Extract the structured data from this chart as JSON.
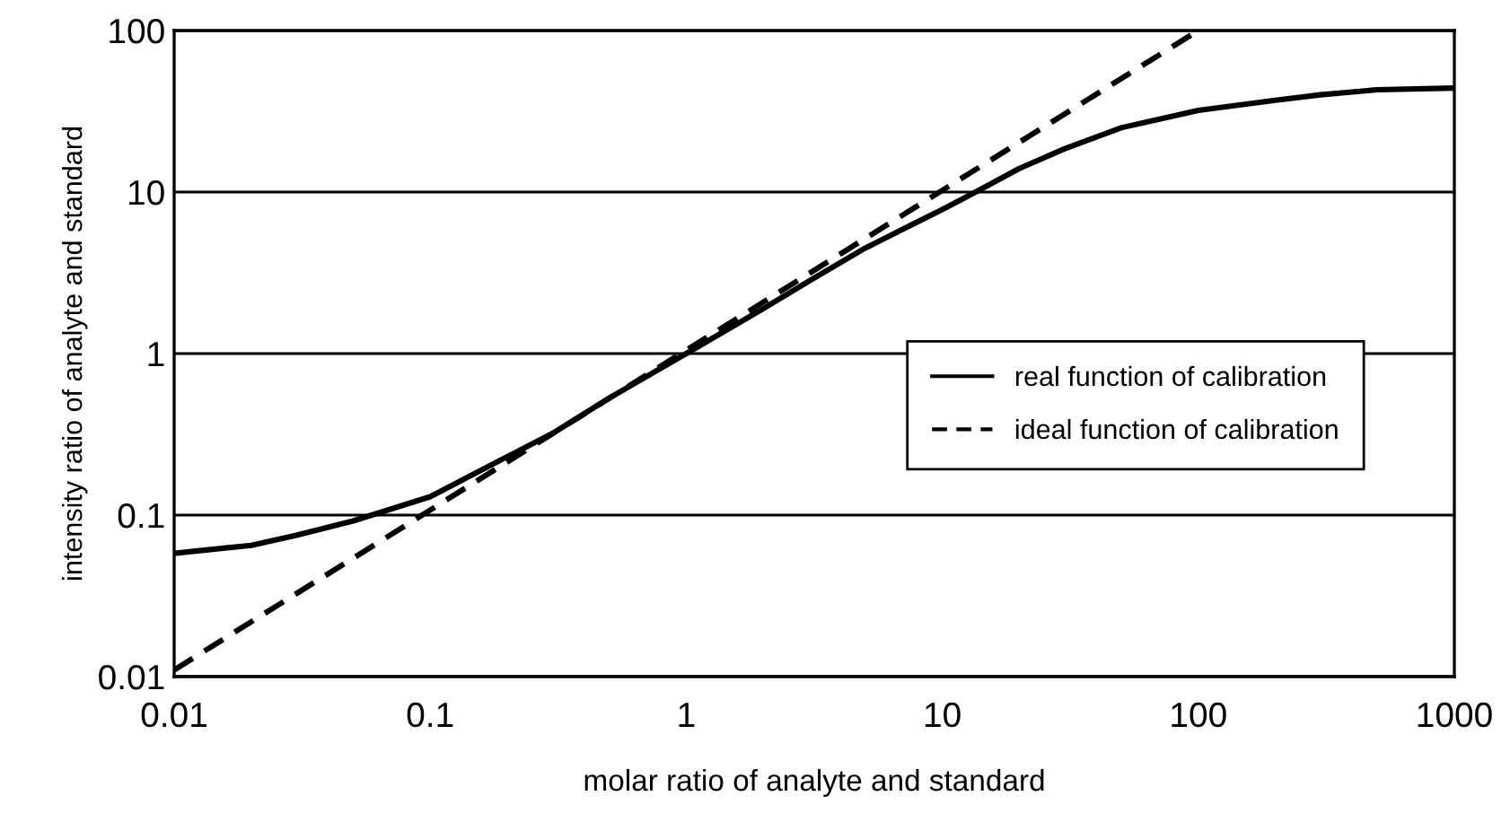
{
  "chart_data": {
    "type": "line",
    "xlabel": "molar ratio of analyte and standard",
    "ylabel": "intensity ratio of analyte and standard",
    "log": "xy",
    "xlim": [
      0.01,
      1000
    ],
    "ylim": [
      0.01,
      100
    ],
    "xticks": [
      0.01,
      0.1,
      1,
      10,
      100,
      1000
    ],
    "yticks": [
      0.01,
      0.1,
      1,
      10,
      100
    ],
    "grid": "y",
    "legend": "right",
    "marker": "none",
    "series": [
      {
        "name": "real function of calibration",
        "color": "#000000",
        "line_style": "solid",
        "x": [
          0.01,
          0.02,
          0.03,
          0.05,
          0.1,
          0.2,
          0.3,
          0.5,
          1,
          2,
          3,
          5,
          10,
          13.5,
          20,
          30,
          50,
          100,
          200,
          300,
          500,
          1000
        ],
        "values": [
          0.058,
          0.065,
          0.075,
          0.092,
          0.13,
          0.23,
          0.32,
          0.53,
          1.0,
          1.9,
          2.8,
          4.5,
          7.8,
          10,
          14,
          18.5,
          25,
          32,
          37,
          40,
          43,
          44
        ]
      },
      {
        "name": "ideal function of calibration",
        "color": "#000000",
        "line_style": "dashed",
        "x": [
          0.01,
          100
        ],
        "values": [
          0.011,
          100
        ]
      }
    ]
  }
}
